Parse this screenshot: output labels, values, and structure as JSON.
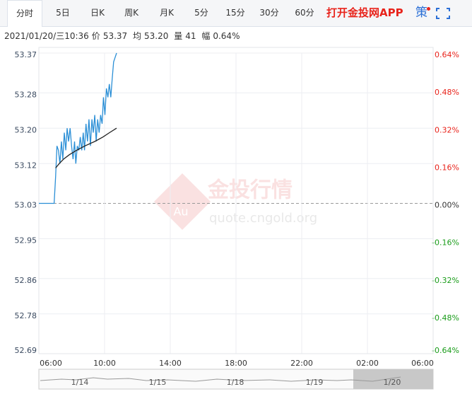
{
  "toolbar": {
    "tabs": [
      "分时",
      "5日",
      "日K",
      "周K",
      "月K",
      "5分",
      "15分",
      "30分",
      "60分"
    ],
    "app_button": "打开金投网APP",
    "strategy": "策"
  },
  "quote_info": {
    "time": "2021/01/20/三10:36",
    "price_label": "价",
    "price": "53.37",
    "avg_label": "均",
    "avg": "53.20",
    "volume_label": "量",
    "volume": "41",
    "range_label": "幅",
    "range": "0.64%"
  },
  "watermark": {
    "title": "金投行情",
    "url": "quote.cngold.org",
    "badge": "Au"
  },
  "navigator": {
    "labels": [
      "1/14",
      "1/15",
      "1/18",
      "1/19",
      "1/20"
    ]
  },
  "chart_data": {
    "type": "line",
    "xlim": [
      0,
      24
    ],
    "xticks": [
      {
        "value": 0,
        "label": "06:00"
      },
      {
        "value": 4,
        "label": "10:00"
      },
      {
        "value": 8,
        "label": "14:00"
      },
      {
        "value": 12,
        "label": "18:00"
      },
      {
        "value": 16,
        "label": "22:00"
      },
      {
        "value": 20,
        "label": "02:00"
      },
      {
        "value": 24,
        "label": "06:00"
      }
    ],
    "ylim": [
      52.69,
      53.37
    ],
    "yticks": [
      53.37,
      53.28,
      {
        "value": 53.2,
        "label": "53.20"
      },
      53.12,
      53.03,
      52.95,
      52.86,
      52.78,
      52.69
    ],
    "y2lim": [
      -0.64,
      0.64
    ],
    "y2ticks": [
      {
        "value": 0.64,
        "label": "0.64%"
      },
      {
        "value": 0.48,
        "label": "0.48%"
      },
      {
        "value": 0.32,
        "label": "0.32%"
      },
      {
        "value": 0.16,
        "label": "0.16%"
      },
      {
        "value": 0,
        "label": "0.00%"
      },
      {
        "value": -0.16,
        "label": "-0.16%"
      },
      {
        "value": -0.32,
        "label": "-0.32%"
      },
      {
        "value": -0.48,
        "label": "-0.48%"
      },
      {
        "value": -0.64,
        "label": "-0.64%"
      }
    ],
    "baseline": 53.03,
    "grid": true,
    "up_color": "#e8231b",
    "down_color": "#1a9c1a",
    "series": [
      {
        "color": "#2b8fd6",
        "x": [
          0,
          0.93,
          1.02,
          1.1,
          1.19,
          1.28,
          1.37,
          1.46,
          1.55,
          1.64,
          1.72,
          1.81,
          1.9,
          1.99,
          2.08,
          2.17,
          2.25,
          2.34,
          2.43,
          2.52,
          2.61,
          2.7,
          2.78,
          2.87,
          2.96,
          3.05,
          3.14,
          3.23,
          3.31,
          3.4,
          3.49,
          3.58,
          3.67,
          3.76,
          3.85,
          3.93,
          4.02,
          4.11,
          4.2,
          4.29,
          4.38,
          4.46,
          4.55,
          4.64,
          4.73
        ],
        "values": [
          53.03,
          53.03,
          53.09,
          53.16,
          53.15,
          53.12,
          53.17,
          53.13,
          53.19,
          53.15,
          53.2,
          53.17,
          53.2,
          53.16,
          53.13,
          53.17,
          53.12,
          53.16,
          53.15,
          53.18,
          53.15,
          53.19,
          53.15,
          53.21,
          53.17,
          53.22,
          53.16,
          53.22,
          53.19,
          53.23,
          53.17,
          53.22,
          53.19,
          53.23,
          53.21,
          53.27,
          53.23,
          53.29,
          53.27,
          53.3,
          53.27,
          53.31,
          53.35,
          53.36,
          53.37
        ]
      },
      {
        "color": "#222222",
        "x": [
          1.02,
          1.24,
          1.5,
          1.86,
          2.3,
          2.8,
          3.4,
          3.9,
          4.3,
          4.73
        ],
        "values": [
          53.11,
          53.12,
          53.13,
          53.14,
          53.15,
          53.16,
          53.17,
          53.18,
          53.19,
          53.2
        ]
      }
    ]
  }
}
